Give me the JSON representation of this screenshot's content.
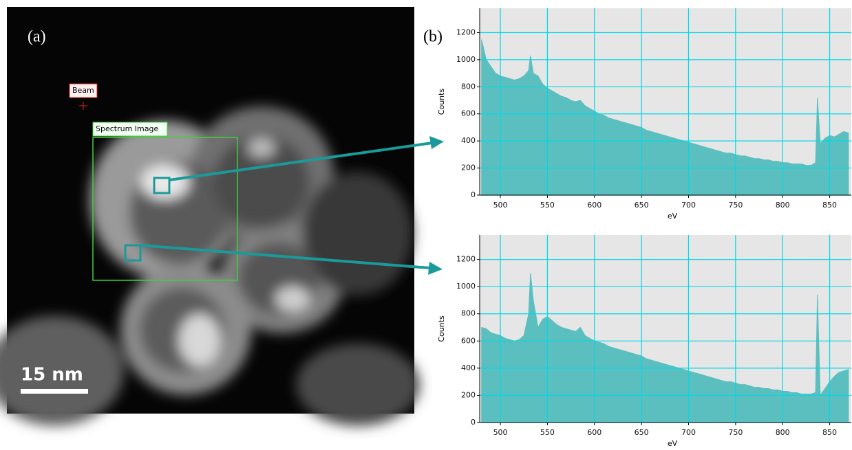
{
  "figure": {
    "panel_a": "(a)",
    "panel_b": "(b)",
    "beam_label": "Beam",
    "roi_label": "Spectrum Image",
    "scale_bar": "15 nm"
  },
  "chart_data": [
    {
      "type": "area",
      "x_label": "eV",
      "y_label": "Counts",
      "color": "#5cbfbf",
      "grid": true,
      "xlim": [
        478,
        873
      ],
      "ylim": [
        0,
        1380
      ],
      "xticks": [
        500,
        550,
        600,
        650,
        700,
        750,
        800,
        850
      ],
      "yticks": [
        0,
        200,
        400,
        600,
        800,
        1000,
        1200
      ],
      "x": [
        480,
        485,
        490,
        495,
        500,
        505,
        510,
        515,
        520,
        525,
        530,
        532,
        535,
        540,
        545,
        550,
        555,
        560,
        565,
        570,
        575,
        580,
        585,
        590,
        595,
        600,
        605,
        610,
        615,
        620,
        625,
        630,
        635,
        640,
        645,
        650,
        655,
        660,
        665,
        670,
        675,
        680,
        685,
        690,
        695,
        700,
        705,
        710,
        715,
        720,
        725,
        730,
        735,
        740,
        745,
        750,
        755,
        760,
        765,
        770,
        775,
        780,
        785,
        790,
        795,
        800,
        805,
        810,
        815,
        820,
        825,
        830,
        835,
        837,
        840,
        845,
        850,
        855,
        860,
        865,
        870
      ],
      "values": [
        1150,
        1000,
        950,
        900,
        880,
        870,
        860,
        850,
        860,
        880,
        920,
        1030,
        900,
        880,
        820,
        790,
        770,
        750,
        730,
        720,
        700,
        690,
        700,
        660,
        640,
        620,
        600,
        590,
        570,
        560,
        550,
        540,
        530,
        520,
        510,
        500,
        480,
        470,
        460,
        450,
        440,
        430,
        420,
        410,
        400,
        390,
        380,
        370,
        360,
        350,
        340,
        330,
        320,
        310,
        310,
        300,
        290,
        290,
        280,
        270,
        270,
        260,
        260,
        250,
        250,
        240,
        240,
        230,
        230,
        230,
        220,
        220,
        240,
        720,
        380,
        420,
        440,
        430,
        450,
        470,
        460
      ]
    },
    {
      "type": "area",
      "x_label": "eV",
      "y_label": "Counts",
      "color": "#5cbfbf",
      "grid": true,
      "xlim": [
        478,
        873
      ],
      "ylim": [
        0,
        1380
      ],
      "xticks": [
        500,
        550,
        600,
        650,
        700,
        750,
        800,
        850
      ],
      "yticks": [
        0,
        200,
        400,
        600,
        800,
        1000,
        1200
      ],
      "x": [
        480,
        485,
        490,
        495,
        500,
        505,
        510,
        515,
        520,
        525,
        530,
        532,
        535,
        540,
        545,
        550,
        555,
        560,
        565,
        570,
        575,
        580,
        585,
        590,
        595,
        600,
        605,
        610,
        615,
        620,
        625,
        630,
        635,
        640,
        645,
        650,
        655,
        660,
        665,
        670,
        675,
        680,
        685,
        690,
        695,
        700,
        705,
        710,
        715,
        720,
        725,
        730,
        735,
        740,
        745,
        750,
        755,
        760,
        765,
        770,
        775,
        780,
        785,
        790,
        795,
        800,
        805,
        810,
        815,
        820,
        825,
        830,
        835,
        837,
        840,
        845,
        850,
        855,
        860,
        865,
        870
      ],
      "values": [
        700,
        690,
        660,
        650,
        640,
        620,
        610,
        600,
        610,
        640,
        800,
        1100,
        900,
        700,
        760,
        780,
        750,
        720,
        700,
        690,
        680,
        670,
        700,
        640,
        620,
        600,
        590,
        580,
        560,
        550,
        540,
        530,
        520,
        510,
        500,
        490,
        470,
        460,
        450,
        440,
        430,
        420,
        410,
        400,
        390,
        380,
        370,
        360,
        350,
        340,
        330,
        320,
        310,
        300,
        300,
        290,
        280,
        280,
        270,
        260,
        260,
        250,
        250,
        240,
        240,
        230,
        230,
        220,
        220,
        210,
        210,
        210,
        220,
        940,
        200,
        250,
        300,
        340,
        370,
        380,
        390
      ]
    }
  ]
}
